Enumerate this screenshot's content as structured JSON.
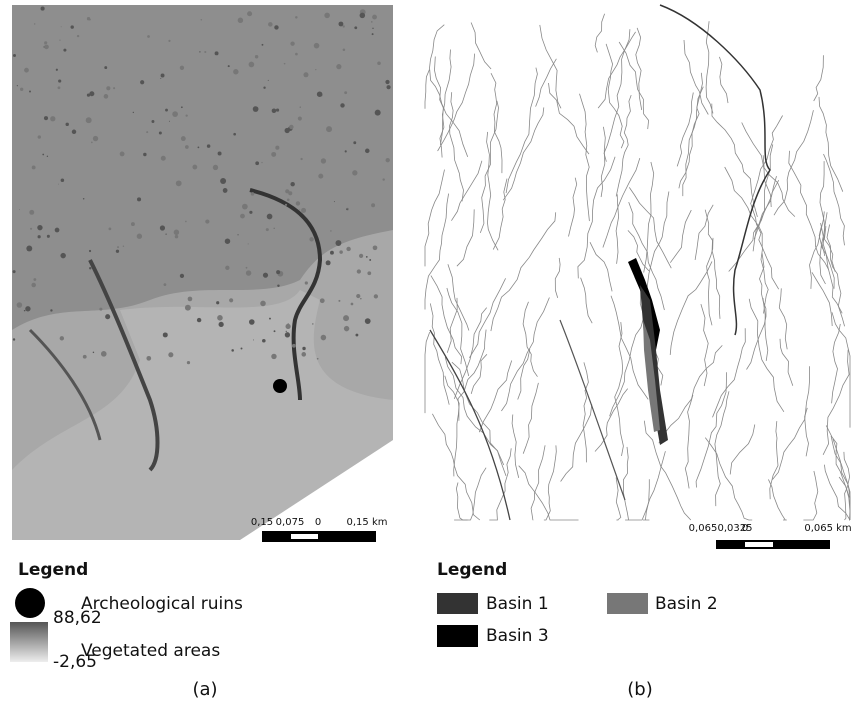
{
  "panels": [
    {
      "label": "(a)",
      "scale_bar": {
        "labels": [
          "0,15",
          "0,075",
          "0",
          "0,15 km"
        ]
      },
      "legend": {
        "title": "Legend",
        "items": [
          {
            "label": "Archeological ruins"
          },
          {
            "label": "Vegetated areas",
            "max": "88,62",
            "min": "-2,65"
          }
        ]
      }
    },
    {
      "label": "(b)",
      "scale_bar": {
        "labels": [
          "0,065",
          "0,0325",
          "0",
          "0,065 km"
        ]
      },
      "legend": {
        "title": "Legend",
        "items": [
          {
            "label": "Basin 1"
          },
          {
            "label": "Basin 2"
          },
          {
            "label": "Basin 3"
          }
        ]
      }
    }
  ]
}
